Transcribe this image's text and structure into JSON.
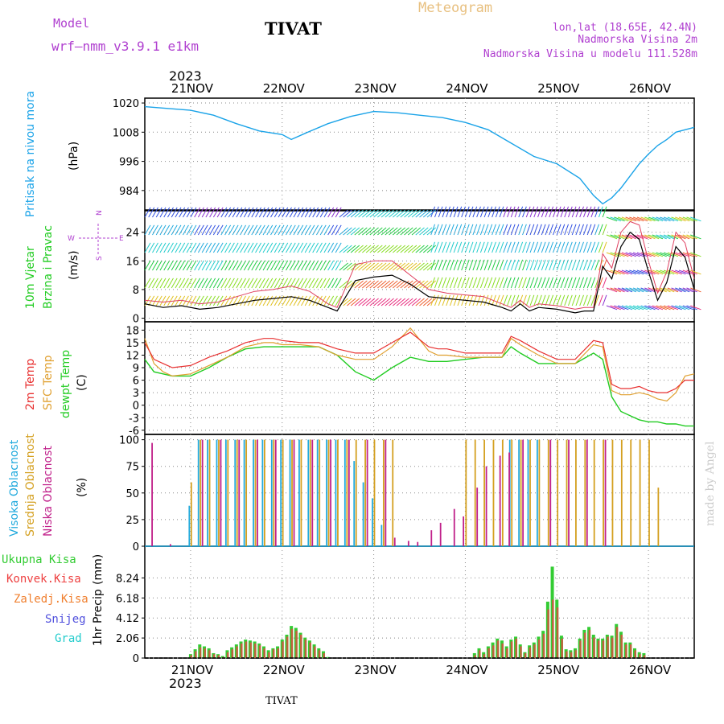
{
  "header": {
    "model_label": "Model",
    "model_name": "wrf—nmm_v3.9.1  e1km",
    "station": "TIVAT",
    "meteogram_label": "Meteogram",
    "lonlat": "lon,lat (18.65E, 42.4N)",
    "elevation": "Nadmorska Visina 2m",
    "model_elevation": "Nadmorska Visina u modelu 111.528m",
    "year": "2023",
    "footer_station": "TIVAT",
    "credit": "made by Angel"
  },
  "colors": {
    "pressure": "#1aa3e8",
    "temp2m": "#e83030",
    "sfc": "#e0a030",
    "dewpt": "#22cc22",
    "high": "#22aadd",
    "mid": "#d4a020",
    "low": "#c0208a",
    "total": "#33cc33",
    "conv": "#ee4040",
    "frozen": "#f08030",
    "snow": "#5050dd",
    "hail": "#22cccc",
    "purple_text": "#b040d0"
  },
  "chart_data": [
    {
      "type": "line",
      "panel": "pressure",
      "ylabel": "Pritisak na nivou mora",
      "unit": "(hPa)",
      "ylim": [
        976,
        1022
      ],
      "yticks": [
        1020,
        1008,
        996,
        984
      ],
      "grid": true,
      "xlim": [
        -0.5,
        5.5
      ],
      "xticks": [
        "21NOV",
        "22NOV",
        "23NOV",
        "24NOV",
        "25NOV",
        "26NOV"
      ],
      "series": [
        {
          "x": [
            -0.5,
            0,
            0.25,
            0.5,
            0.75,
            1.0,
            1.1,
            1.25,
            1.5,
            1.75,
            2.0,
            2.25,
            2.5,
            2.75,
            3.0,
            3.25,
            3.5,
            3.75,
            4.0,
            4.25,
            4.4,
            4.5,
            4.6,
            4.7,
            4.8,
            4.9,
            5.0,
            5.1,
            5.2,
            5.3,
            5.5
          ],
          "y": [
            1018.5,
            1017,
            1015,
            1011.5,
            1008.5,
            1007,
            1005,
            1007.5,
            1011.5,
            1014.5,
            1016.5,
            1016,
            1015,
            1014,
            1012,
            1009,
            1003.5,
            998,
            995,
            989,
            982,
            978.5,
            981,
            985,
            990,
            995,
            999,
            1002.5,
            1005,
            1008,
            1010
          ]
        }
      ]
    },
    {
      "type": "line",
      "panel": "wind",
      "ylabel": [
        "10m Vjetar",
        "Brzina i Pravac"
      ],
      "unit": "(m/s)",
      "ylim": [
        -1,
        30
      ],
      "yticks": [
        24,
        16,
        8,
        0
      ],
      "compass_labels": {
        "n": "N",
        "w": "W",
        "e": "E",
        "s": "S"
      },
      "series": [
        {
          "name": "speed",
          "x": [
            -0.5,
            -0.3,
            -0.1,
            0.1,
            0.3,
            0.5,
            0.7,
            0.9,
            1.1,
            1.3,
            1.5,
            1.6,
            1.8,
            2.0,
            2.2,
            2.4,
            2.6,
            2.8,
            3.0,
            3.2,
            3.4,
            3.5,
            3.6,
            3.7,
            3.8,
            4.0,
            4.2,
            4.3,
            4.4,
            4.5,
            4.6,
            4.7,
            4.8,
            4.9,
            5.0,
            5.1,
            5.2,
            5.3,
            5.4,
            5.5
          ],
          "y": [
            4,
            3,
            3.5,
            2.5,
            3,
            4,
            5,
            5.5,
            6,
            5,
            3,
            2,
            10.5,
            11.5,
            12,
            9.5,
            6,
            5.5,
            5,
            4.5,
            3,
            2,
            4,
            2,
            3,
            2.5,
            1.5,
            2,
            2,
            14.5,
            11,
            20,
            24,
            22,
            13,
            5,
            10,
            20,
            17,
            8
          ]
        },
        {
          "name": "gust",
          "x": [
            -0.5,
            -0.3,
            -0.1,
            0.1,
            0.3,
            0.5,
            0.7,
            0.9,
            1.1,
            1.3,
            1.5,
            1.6,
            1.8,
            2.0,
            2.2,
            2.4,
            2.6,
            2.8,
            3.0,
            3.2,
            3.4,
            3.5,
            3.6,
            3.7,
            3.8,
            4.0,
            4.2,
            4.3,
            4.4,
            4.5,
            4.6,
            4.7,
            4.8,
            4.9,
            5.0,
            5.1,
            5.2,
            5.3,
            5.4,
            5.5
          ],
          "y": [
            5,
            4.5,
            5,
            4,
            4.5,
            6,
            7.5,
            8,
            9,
            7.5,
            4,
            3,
            15,
            16,
            16,
            12,
            8,
            7,
            6.5,
            6,
            4,
            3,
            5,
            3,
            4,
            3.5,
            2.5,
            3,
            3,
            18,
            14,
            24,
            27,
            26,
            16,
            7,
            13,
            24,
            21,
            11
          ]
        }
      ]
    },
    {
      "type": "line",
      "panel": "temperature",
      "ylabel": [
        "2m Temp",
        "SFC Temp",
        "dewpt Temp"
      ],
      "unit": "(C)",
      "ylim": [
        -7,
        20
      ],
      "yticks": [
        18,
        15,
        12,
        9,
        6,
        3,
        0,
        -3,
        -6
      ],
      "series": [
        {
          "name": "2m Temp",
          "x": [
            -0.5,
            -0.4,
            -0.3,
            -0.2,
            0,
            0.2,
            0.4,
            0.6,
            0.8,
            0.9,
            1.0,
            1.2,
            1.4,
            1.6,
            1.8,
            2.0,
            2.2,
            2.4,
            2.6,
            2.7,
            2.8,
            3.0,
            3.2,
            3.4,
            3.5,
            3.6,
            3.8,
            4.0,
            4.2,
            4.4,
            4.5,
            4.6,
            4.7,
            4.8,
            4.9,
            5.0,
            5.1,
            5.2,
            5.3,
            5.4,
            5.5
          ],
          "y": [
            15,
            11,
            10,
            9,
            9.5,
            11.5,
            13,
            15,
            16,
            16,
            15.5,
            15,
            15,
            13.5,
            12.5,
            12.5,
            15,
            17.5,
            14,
            13.5,
            13.5,
            12.5,
            12.5,
            12.5,
            16.5,
            15.5,
            13,
            11,
            11,
            15.5,
            15,
            5,
            4,
            4,
            4.5,
            3.5,
            3,
            3,
            4,
            6,
            6
          ]
        },
        {
          "name": "SFC Temp",
          "x": [
            -0.5,
            -0.4,
            -0.3,
            -0.2,
            0,
            0.2,
            0.4,
            0.6,
            0.8,
            0.9,
            1.0,
            1.2,
            1.4,
            1.6,
            1.8,
            2.0,
            2.2,
            2.4,
            2.6,
            2.7,
            2.8,
            3.0,
            3.2,
            3.4,
            3.5,
            3.6,
            3.8,
            4.0,
            4.2,
            4.4,
            4.5,
            4.6,
            4.7,
            4.8,
            4.9,
            5.0,
            5.1,
            5.2,
            5.3,
            5.4,
            5.5
          ],
          "y": [
            16,
            10,
            8,
            7,
            7.5,
            9.5,
            11.5,
            14,
            15,
            15,
            14.5,
            14.5,
            14,
            12,
            11,
            11,
            14,
            18.5,
            13,
            12,
            12,
            11.5,
            11.5,
            11.5,
            16,
            14.5,
            12,
            10,
            10,
            14.5,
            14,
            3.5,
            2.5,
            2.5,
            3,
            2.5,
            1.5,
            1,
            3,
            7,
            7.5
          ]
        },
        {
          "name": "dewpt Temp",
          "x": [
            -0.5,
            -0.4,
            -0.3,
            -0.2,
            0,
            0.2,
            0.4,
            0.6,
            0.8,
            0.9,
            1.0,
            1.2,
            1.4,
            1.6,
            1.8,
            2.0,
            2.2,
            2.4,
            2.6,
            2.7,
            2.8,
            3.0,
            3.2,
            3.4,
            3.5,
            3.6,
            3.8,
            4.0,
            4.2,
            4.4,
            4.5,
            4.6,
            4.7,
            4.8,
            4.9,
            5.0,
            5.1,
            5.2,
            5.3,
            5.4,
            5.5
          ],
          "y": [
            11,
            8,
            7.5,
            7,
            7,
            9,
            11.5,
            13.5,
            14,
            14,
            14,
            14,
            14,
            12,
            8,
            6,
            9,
            11.5,
            10.5,
            10.5,
            10.5,
            11,
            11.5,
            11.5,
            14,
            12.5,
            10,
            10,
            10,
            12.5,
            11,
            2,
            -1.5,
            -2.5,
            -3.5,
            -4,
            -4,
            -4.5,
            -4.5,
            -5,
            -5
          ]
        }
      ]
    },
    {
      "type": "bar",
      "panel": "cloudiness",
      "ylabel": [
        "Visoka Oblacnost",
        "Srednja Oblacnost",
        "Niska Oblacnost"
      ],
      "unit": "(%)",
      "ylim": [
        0,
        105
      ],
      "yticks": [
        100,
        75,
        50,
        25,
        0
      ],
      "series": [
        {
          "name": "Visoka Oblacnost",
          "x": [
            0,
            0.1,
            0.2,
            0.3,
            0.4,
            0.5,
            0.6,
            0.7,
            0.8,
            0.9,
            1.0,
            1.1,
            1.2,
            1.3,
            1.4,
            1.5,
            1.6,
            1.7,
            1.8,
            1.9,
            2.0,
            2.1,
            3.5,
            3.6,
            3.7,
            3.8
          ],
          "values": [
            38,
            100,
            100,
            100,
            100,
            100,
            100,
            100,
            100,
            100,
            100,
            100,
            100,
            100,
            100,
            100,
            100,
            100,
            80,
            60,
            45,
            20,
            100,
            100,
            100,
            100
          ]
        },
        {
          "name": "Srednja Oblacnost",
          "x": [
            0,
            0.1,
            0.2,
            0.3,
            0.4,
            0.5,
            0.6,
            0.7,
            0.8,
            0.9,
            1.0,
            1.1,
            1.2,
            1.3,
            1.4,
            1.5,
            1.6,
            1.7,
            1.8,
            1.9,
            2.0,
            2.1,
            2.2,
            3.0,
            3.1,
            3.2,
            3.3,
            3.4,
            3.5,
            3.6,
            3.7,
            3.8,
            3.9,
            4.0,
            4.1,
            4.2,
            4.3,
            4.4,
            4.5,
            4.6,
            4.7,
            4.8,
            4.9,
            5.0,
            5.1
          ],
          "values": [
            60,
            100,
            100,
            100,
            100,
            100,
            100,
            100,
            100,
            100,
            100,
            100,
            100,
            100,
            100,
            100,
            100,
            100,
            100,
            100,
            100,
            100,
            100,
            100,
            100,
            100,
            100,
            100,
            100,
            100,
            100,
            100,
            100,
            100,
            100,
            100,
            100,
            100,
            100,
            100,
            100,
            100,
            100,
            100,
            55
          ]
        },
        {
          "name": "Niska Oblacnost",
          "x": [
            -0.45,
            -0.25,
            0.1,
            0.3,
            0.5,
            0.7,
            0.9,
            1.1,
            1.3,
            1.5,
            1.7,
            1.9,
            2.1,
            2.2,
            2.35,
            2.45,
            2.6,
            2.7,
            2.85,
            2.95,
            3.1,
            3.2,
            3.35,
            3.45,
            3.6,
            3.9,
            4.1,
            4.3,
            4.5
          ],
          "values": [
            97,
            2,
            100,
            100,
            100,
            100,
            100,
            100,
            100,
            100,
            100,
            100,
            100,
            8,
            5,
            4,
            15,
            22,
            35,
            28,
            55,
            75,
            85,
            88,
            100,
            100,
            100,
            100,
            100
          ]
        }
      ]
    },
    {
      "type": "bar",
      "panel": "precipitation",
      "ylabel": "1hr Precip",
      "unit": "(mm)",
      "ylim": [
        0,
        11.5
      ],
      "yticks": [
        8.24,
        6.18,
        4.12,
        2.06,
        0
      ],
      "legend": [
        "Ukupna Kisa",
        "Konvek.Kisa",
        "Zaledj.Kisa",
        "Snijeg",
        "Grad"
      ],
      "series": [
        {
          "name": "Ukupna Kisa",
          "x": [
            0.0,
            0.05,
            0.1,
            0.15,
            0.2,
            0.25,
            0.3,
            0.35,
            0.4,
            0.45,
            0.5,
            0.55,
            0.6,
            0.65,
            0.7,
            0.75,
            0.8,
            0.85,
            0.9,
            0.95,
            1.0,
            1.05,
            1.1,
            1.15,
            1.2,
            1.25,
            1.3,
            1.35,
            1.4,
            1.45,
            1.5,
            3.1,
            3.15,
            3.2,
            3.25,
            3.3,
            3.35,
            3.4,
            3.45,
            3.5,
            3.55,
            3.6,
            3.65,
            3.7,
            3.75,
            3.8,
            3.85,
            3.9,
            3.95,
            4.0,
            4.05,
            4.1,
            4.15,
            4.2,
            4.25,
            4.3,
            4.35,
            4.4,
            4.45,
            4.5,
            4.55,
            4.6,
            4.65,
            4.7,
            4.75,
            4.8,
            4.85,
            4.9,
            4.95
          ],
          "values": [
            0.4,
            0.9,
            1.4,
            1.2,
            1.0,
            0.5,
            0.4,
            0.2,
            0.8,
            1.1,
            1.4,
            1.7,
            1.9,
            1.8,
            1.7,
            1.5,
            1.2,
            0.8,
            1.0,
            1.2,
            1.9,
            2.4,
            3.3,
            3.1,
            2.6,
            2.1,
            1.8,
            1.4,
            1.0,
            0.7,
            0.1,
            0.5,
            1.0,
            0.6,
            1.2,
            1.6,
            2.0,
            1.8,
            1.2,
            1.9,
            2.2,
            1.4,
            0.6,
            1.3,
            1.6,
            2.2,
            2.8,
            5.8,
            9.4,
            6.0,
            2.3,
            0.9,
            0.8,
            1.0,
            2.0,
            2.9,
            3.2,
            2.4,
            2.0,
            2.0,
            2.4,
            2.3,
            3.5,
            2.7,
            1.6,
            1.6,
            1.0,
            0.6,
            0.5
          ]
        },
        {
          "name": "Konvek.Kisa",
          "x": [
            0.0,
            0.05,
            0.1,
            0.15,
            0.2,
            0.25,
            0.3,
            0.35,
            0.4,
            0.45,
            0.5,
            0.55,
            0.6,
            0.65,
            0.7,
            0.75,
            0.8,
            0.85,
            0.9,
            0.95,
            1.0,
            1.05,
            1.1,
            1.15,
            1.2,
            1.25,
            1.3,
            1.35,
            1.4,
            1.45,
            1.5,
            3.1,
            3.15,
            3.2,
            3.25,
            3.3,
            3.35,
            3.4,
            3.45,
            3.5,
            3.55,
            3.6,
            3.65,
            3.7,
            3.75,
            3.8,
            3.85,
            3.9,
            3.95,
            4.0,
            4.05,
            4.1,
            4.15,
            4.2,
            4.25,
            4.3,
            4.35,
            4.4,
            4.45,
            4.5,
            4.55,
            4.6,
            4.65,
            4.7,
            4.75,
            4.8,
            4.85,
            4.9,
            4.95
          ],
          "values": [
            0.3,
            0.7,
            1.1,
            1.0,
            0.8,
            0.4,
            0.3,
            0.1,
            0.6,
            0.9,
            1.2,
            1.5,
            1.7,
            1.6,
            1.5,
            1.3,
            1.0,
            0.6,
            0.9,
            1.0,
            1.7,
            2.2,
            3.0,
            2.8,
            2.4,
            1.9,
            1.6,
            1.2,
            0.8,
            0.5,
            0.0,
            0.3,
            0.8,
            0.4,
            1.0,
            1.3,
            1.8,
            1.5,
            1.0,
            1.7,
            2.0,
            1.2,
            0.5,
            1.1,
            1.4,
            1.9,
            2.5,
            5.0,
            6.0,
            5.2,
            2.0,
            0.7,
            0.6,
            0.8,
            1.8,
            2.6,
            2.9,
            2.1,
            1.8,
            1.8,
            2.2,
            2.1,
            3.2,
            2.4,
            1.4,
            1.4,
            0.8,
            0.4,
            0.3
          ]
        }
      ]
    }
  ]
}
